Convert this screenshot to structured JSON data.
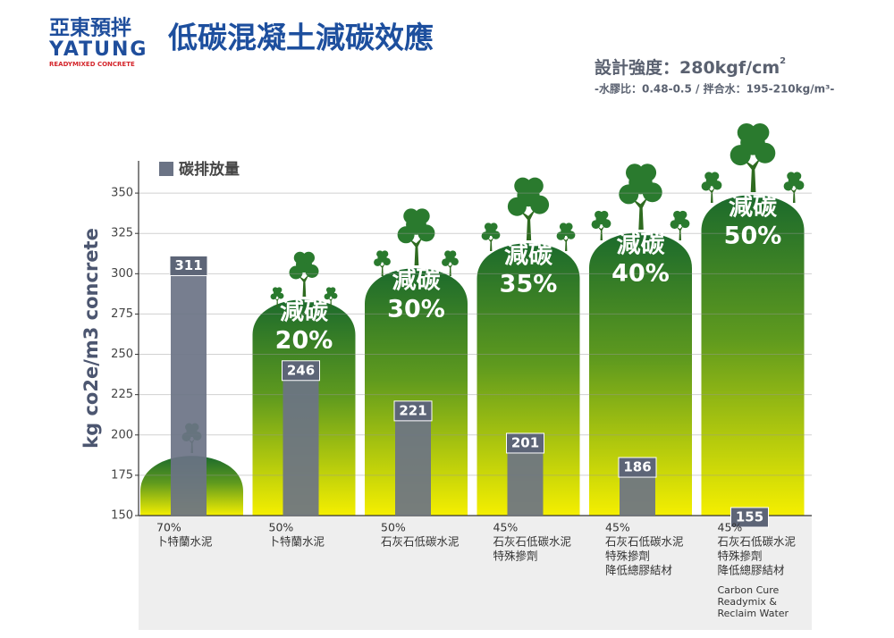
{
  "header": {
    "logo_cn": "亞東預拌",
    "logo_en": "YATUNG",
    "logo_sub": "READYMIXED CONCRETE",
    "title": "低碳混凝土減碳效應",
    "spec": "設計強度：280kgf/cm",
    "spec_sup": "2",
    "spec_note": "-水膠比：0.48-0.5 / 拌合水：195-210kg/m³-"
  },
  "chart_data": {
    "type": "bar",
    "ylabel": "kg co2e/m3 concrete",
    "categories": [
      [
        "70%",
        "卜特蘭水泥"
      ],
      [
        "50%",
        "卜特蘭水泥"
      ],
      [
        "50%",
        "石灰石低碳水泥"
      ],
      [
        "45%",
        "石灰石低碳水泥",
        "特殊摻劑"
      ],
      [
        "45%",
        "石灰石低碳水泥",
        "特殊摻劑",
        "降低總膠結材"
      ],
      [
        "45%",
        "石灰石低碳水泥",
        "特殊摻劑",
        "降低總膠結材",
        "Carbon Cure",
        "Readymix &",
        "Reclaim Water"
      ]
    ],
    "series": [
      {
        "name": "碳排放量",
        "color": "#6b7385",
        "values": [
          311,
          246,
          221,
          201,
          186,
          155
        ]
      }
    ],
    "annotations": [
      null,
      [
        "減碳",
        "20%"
      ],
      [
        "減碳",
        "30%"
      ],
      [
        "減碳",
        "35%"
      ],
      [
        "減碳",
        "40%"
      ],
      [
        "減碳",
        "50%"
      ]
    ],
    "ylim": [
      150,
      370
    ],
    "yticks": [
      150,
      175,
      200,
      225,
      250,
      275,
      300,
      325,
      350
    ],
    "grid": true
  }
}
